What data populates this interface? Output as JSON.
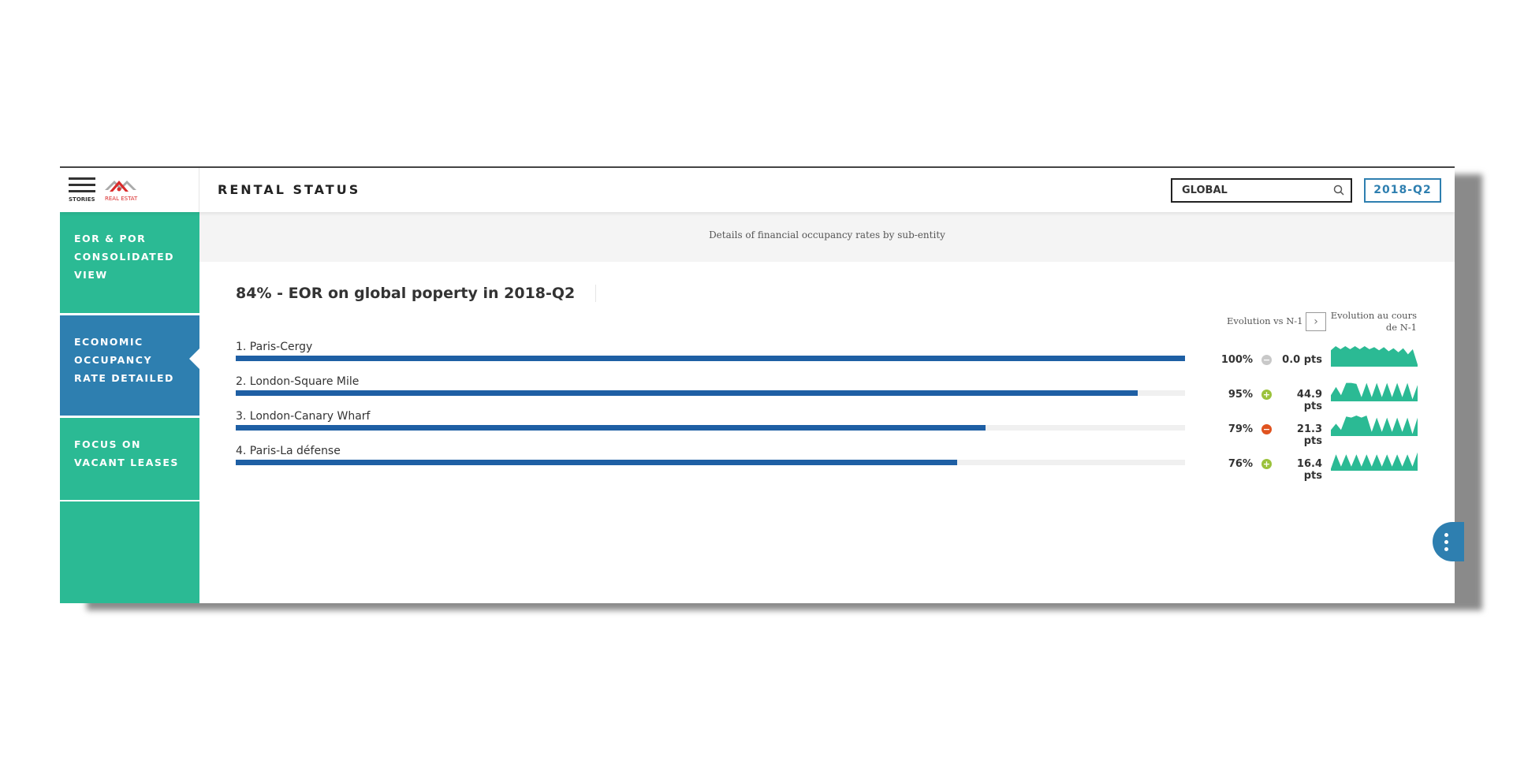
{
  "header": {
    "menu_label": "STORIES",
    "logo_text": "REAL ESTATE",
    "title": "RENTAL STATUS",
    "search_value": "GLOBAL",
    "period": "2018-Q2"
  },
  "sidebar": {
    "items": [
      {
        "label": "EOR & POR CONSOLIDATED VIEW",
        "active": false
      },
      {
        "label": "ECONOMIC OCCUPANCY RATE DETAILED",
        "active": true
      },
      {
        "label": "FOCUS ON VACANT LEASES",
        "active": false
      }
    ]
  },
  "main": {
    "subtitle": "Details of financial occupancy rates by sub-entity",
    "title": "84%  - EOR on global poperty in 2018-Q2",
    "col_evolution": "Evolution vs N-1",
    "col_evolution_n1": "Evolution au cours de N-1"
  },
  "colors": {
    "bar": "#1e5fa4",
    "sidebar": "#2bba94",
    "active": "#2e7fb0",
    "spark": "#2bba94",
    "neutral": "#c8c8c8",
    "positive": "#9bc23c",
    "negative": "#e0531f"
  },
  "chart_data": {
    "type": "bar",
    "categories": [
      "1. Paris-Cergy",
      "2. London-Square Mile",
      "3. London-Canary Wharf",
      "4. Paris-La défense"
    ],
    "values": [
      100,
      95,
      79,
      76
    ],
    "ylim": [
      0,
      100
    ],
    "rows": [
      {
        "pct": "100%",
        "trend": "neutral",
        "trend_icon": "minus-circle-icon",
        "pts": "0.0 pts",
        "spark": [
          0.8,
          1,
          0.85,
          1,
          0.85,
          1,
          0.85,
          1,
          0.85,
          0.95,
          0.8,
          0.95,
          0.75,
          0.9,
          0.7,
          0.9,
          0.6,
          0.85,
          0.1
        ]
      },
      {
        "pct": "95%",
        "trend": "positive",
        "trend_icon": "plus-circle-icon",
        "pts": "44.9 pts",
        "spark": [
          0.3,
          0.7,
          0.3,
          0.9,
          0.9,
          0.85,
          0.2,
          0.9,
          0.2,
          0.9,
          0.2,
          0.9,
          0.2,
          0.9,
          0.2,
          0.9,
          0.1,
          0.8
        ]
      },
      {
        "pct": "79%",
        "trend": "negative",
        "trend_icon": "minus-circle-icon",
        "pts": "21.3 pts",
        "spark": [
          0.3,
          0.6,
          0.3,
          0.95,
          0.9,
          1,
          0.9,
          1,
          0.2,
          0.9,
          0.2,
          0.9,
          0.2,
          0.9,
          0.2,
          0.9,
          0.1,
          0.9
        ]
      },
      {
        "pct": "76%",
        "trend": "positive",
        "trend_icon": "plus-circle-icon",
        "pts": "16.4 pts",
        "spark": [
          0.1,
          0.8,
          0.2,
          0.8,
          0.2,
          0.8,
          0.2,
          0.8,
          0.2,
          0.8,
          0.2,
          0.8,
          0.2,
          0.8,
          0.2,
          0.8,
          0.2,
          0.9
        ]
      }
    ]
  }
}
